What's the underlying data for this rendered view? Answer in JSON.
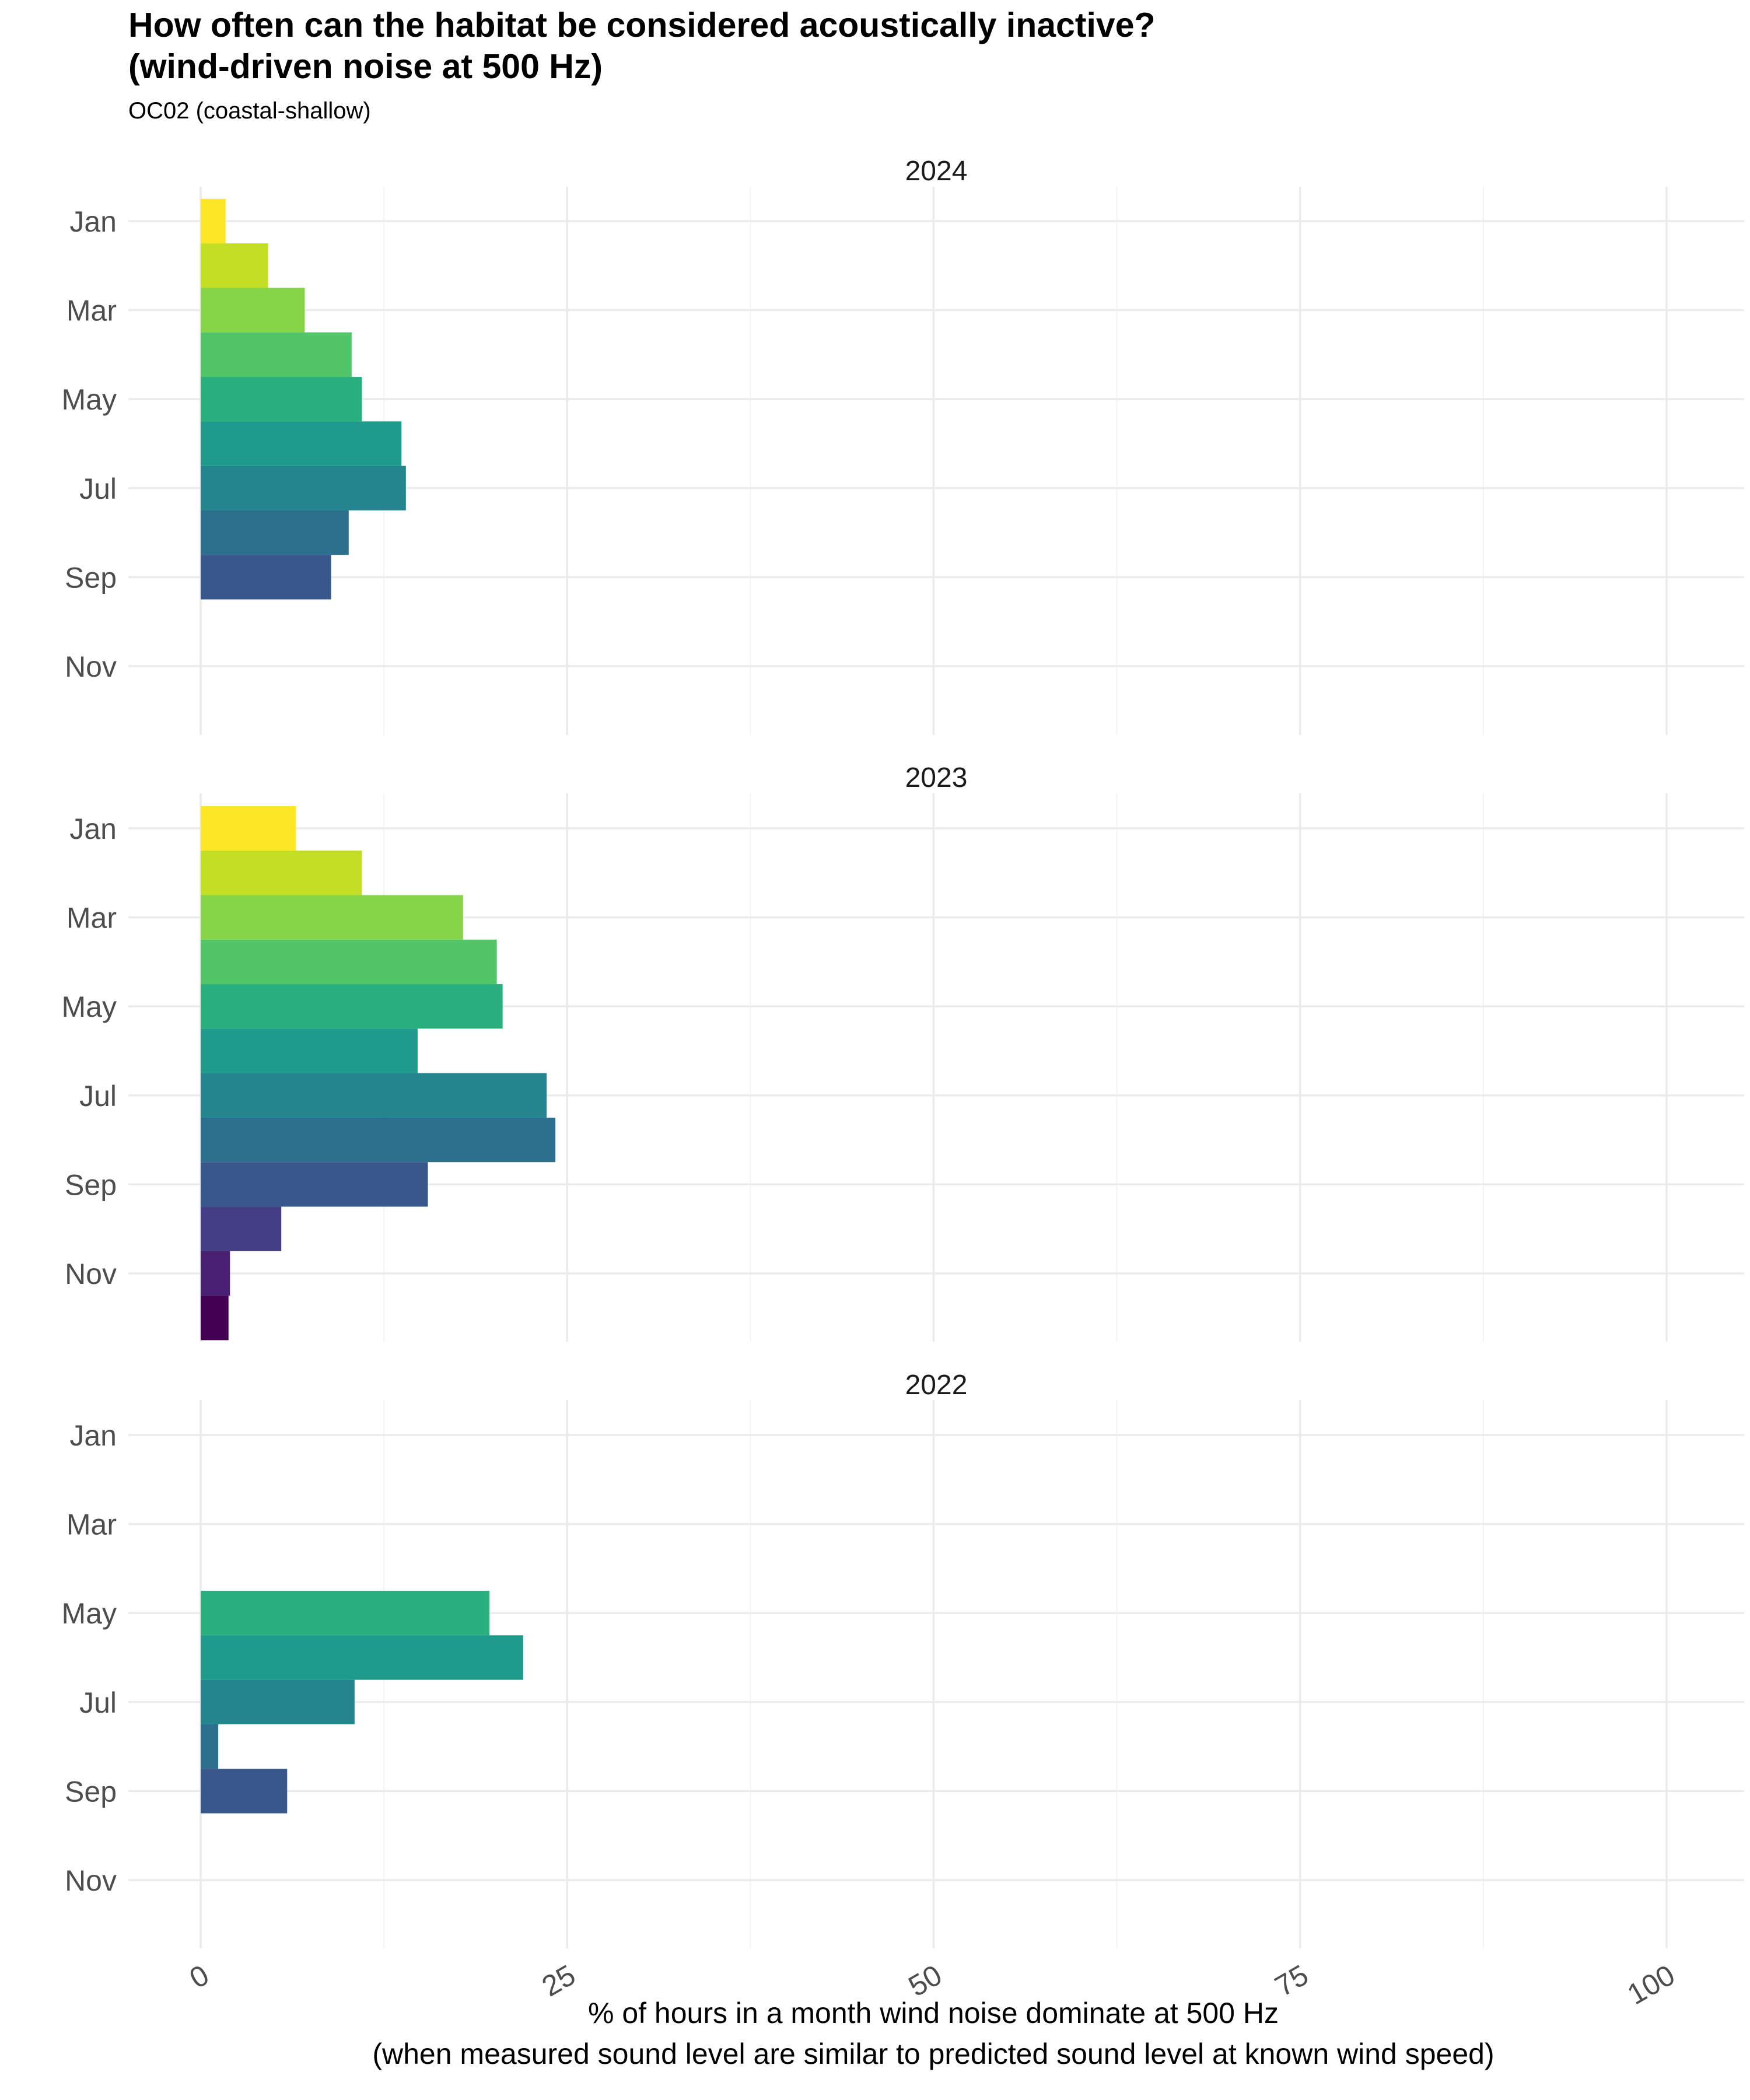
{
  "chart_data": {
    "type": "bar",
    "orientation": "horizontal",
    "title": "How often can the habitat be considered acoustically inactive?\n(wind-driven noise at 500 Hz)",
    "subtitle": "OC02 (coastal-shallow)",
    "xlabel": [
      "% of hours in a month wind noise dominate at 500 Hz",
      "(when measured sound level are similar to predicted sound level at known wind speed)"
    ],
    "xlim": [
      0,
      100
    ],
    "x_ticks": [
      "0",
      "25",
      "50",
      "75",
      "100"
    ],
    "y_ticks": [
      "Jan",
      "Mar",
      "May",
      "Jul",
      "Sep",
      "Nov"
    ],
    "months": [
      "Jan",
      "Feb",
      "Mar",
      "Apr",
      "May",
      "Jun",
      "Jul",
      "Aug",
      "Sep",
      "Oct",
      "Nov",
      "Dec"
    ],
    "month_colors": [
      "#fde725",
      "#c2df23",
      "#86d549",
      "#52c569",
      "#2ab07f",
      "#1e9b8a",
      "#25858e",
      "#2d708e",
      "#38588c",
      "#433e85",
      "#482173",
      "#440154"
    ],
    "grid": true,
    "facets": [
      {
        "strip": "2024",
        "values": [
          1.7,
          4.6,
          7.1,
          10.3,
          11.0,
          13.7,
          14.0,
          10.1,
          8.9,
          null,
          null,
          null
        ]
      },
      {
        "strip": "2023",
        "values": [
          6.5,
          11.0,
          17.9,
          20.2,
          20.6,
          14.8,
          23.6,
          24.2,
          15.5,
          5.5,
          2.0,
          1.9
        ]
      },
      {
        "strip": "2022",
        "values": [
          null,
          null,
          null,
          null,
          19.7,
          22.0,
          10.5,
          1.2,
          5.9,
          null,
          null,
          null
        ]
      }
    ]
  }
}
